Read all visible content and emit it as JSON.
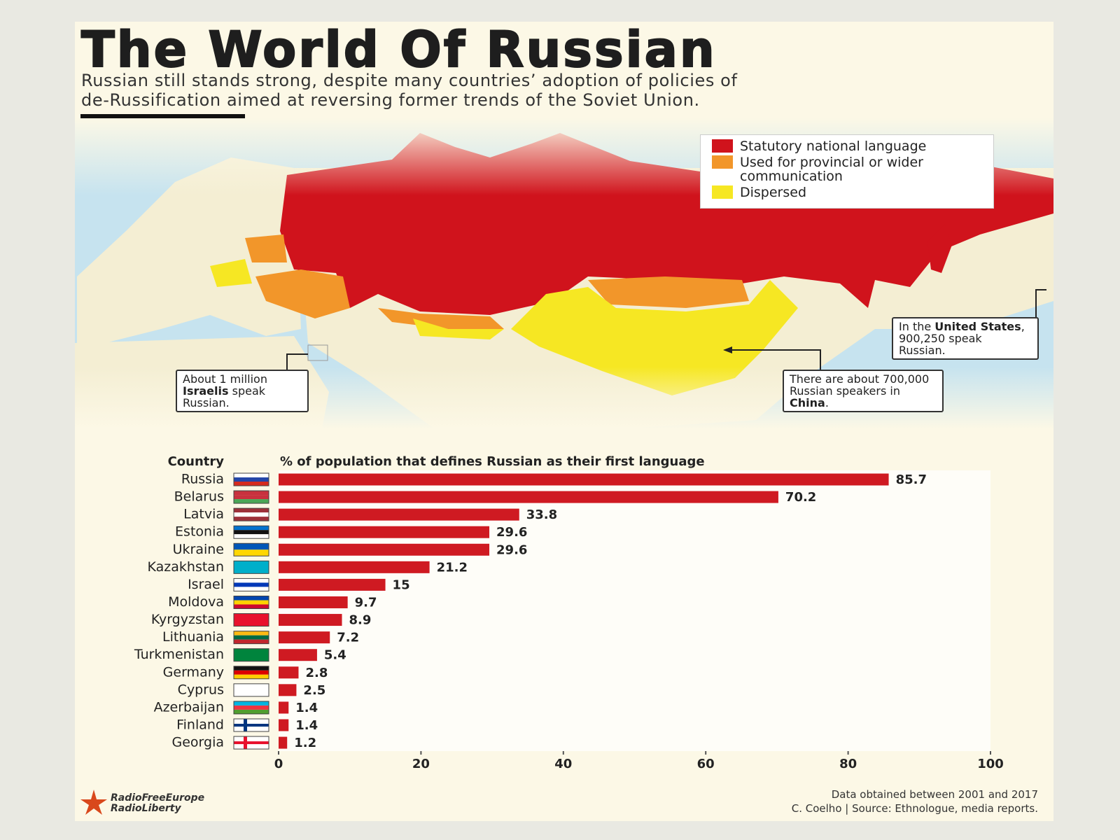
{
  "header": {
    "title": "The World Of Russian",
    "subtitle": [
      "Russian still stands strong, despite many countries’ adoption of policies of",
      "de-Russification aimed at reversing former trends of the Soviet Union."
    ]
  },
  "map": {
    "legend": [
      {
        "label": "Statutory national language",
        "color": "#d0131c"
      },
      {
        "label": "Used for provincial or wider communication",
        "color": "#f2962a"
      },
      {
        "label": "Dispersed",
        "color": "#f6e723"
      }
    ],
    "annotations": [
      {
        "text": [
          "About 1 million ",
          "Israelis",
          " speak Russian."
        ]
      },
      {
        "text": [
          "In the ",
          "United States",
          ", 900,250 speak Russian."
        ]
      },
      {
        "text": [
          "There are about 700,000 Russian speakers in ",
          "China",
          "."
        ]
      }
    ]
  },
  "chart_data": {
    "type": "bar",
    "category_label": "Country",
    "value_label": "% of population that defines Russian as their first language",
    "categories": [
      "Russia",
      "Belarus",
      "Latvia",
      "Estonia",
      "Ukraine",
      "Kazakhstan",
      "Israel",
      "Moldova",
      "Kyrgyzstan",
      "Lithuania",
      "Turkmenistan",
      "Germany",
      "Cyprus",
      "Azerbaijan",
      "Finland",
      "Georgia"
    ],
    "values": [
      85.7,
      70.2,
      33.8,
      29.6,
      29.6,
      21.2,
      15,
      9.7,
      8.9,
      7.2,
      5.4,
      2.8,
      2.5,
      1.4,
      1.4,
      1.2
    ],
    "color": "#cf1a22",
    "xlim": [
      0,
      100
    ],
    "xticks": [
      0,
      20,
      40,
      60,
      80,
      100
    ]
  },
  "footer": {
    "logo": [
      "RadioFreeEurope",
      "RadioLiberty"
    ],
    "source_note": "Data obtained between 2001 and 2017",
    "credit": "C. Coelho | Source: Ethnologue, media reports."
  }
}
